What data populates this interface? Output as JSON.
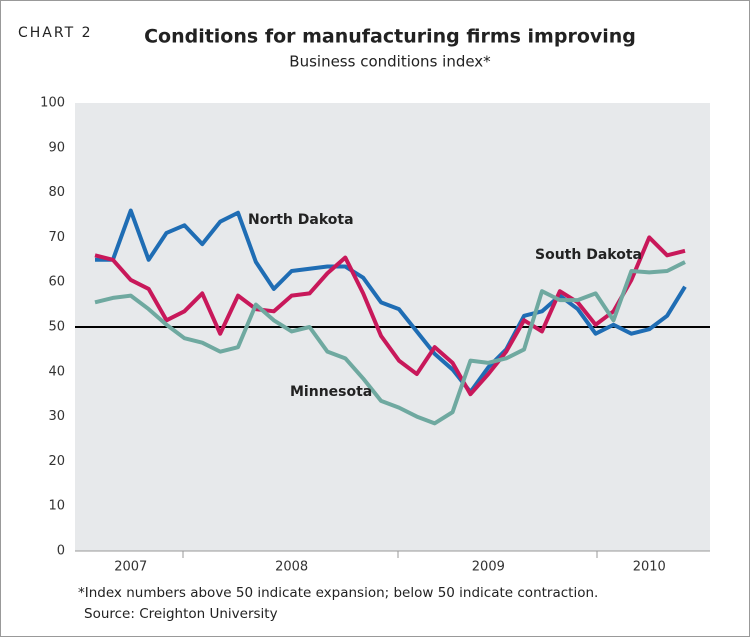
{
  "chart_data": {
    "type": "line",
    "label": "CHART 2",
    "title": "Conditions for manufacturing firms improving",
    "subtitle": "Business conditions index*",
    "footnote": "*Index numbers above 50 indicate expansion; below 50 indicate contraction.",
    "source": "Source: Creighton University",
    "categories": [
      null,
      null,
      "2007",
      null,
      null,
      null,
      null,
      null,
      null,
      null,
      null,
      "2008",
      null,
      null,
      null,
      null,
      null,
      null,
      null,
      null,
      null,
      null,
      "2009",
      null,
      null,
      null,
      null,
      null,
      null,
      null,
      null,
      "2010",
      null,
      null
    ],
    "series": [
      {
        "name": "North Dakota",
        "color": "#1f6db4",
        "values": [
          65,
          65,
          76,
          65,
          71,
          72.7,
          68.5,
          73.5,
          75.5,
          64.5,
          58.5,
          62.5,
          63,
          63.5,
          63.5,
          61,
          55.5,
          54,
          49,
          44,
          40.5,
          35.5,
          41,
          45,
          52.5,
          53.5,
          57,
          54,
          48.5,
          50.5,
          48.5,
          49.5,
          52.5,
          59
        ]
      },
      {
        "name": "South Dakota",
        "color": "#c8185a",
        "values": [
          66,
          65,
          60.5,
          58.5,
          51.5,
          53.5,
          57.5,
          48.5,
          57,
          54,
          53.5,
          57,
          57.5,
          62,
          65.5,
          57.5,
          48,
          42.5,
          39.5,
          45.5,
          42,
          35,
          39.5,
          44.5,
          51.5,
          49,
          58,
          55.5,
          50.5,
          53.5,
          60.5,
          70,
          66,
          67
        ]
      },
      {
        "name": "Minnesota",
        "color": "#6fa9a0",
        "values": [
          55.5,
          56.5,
          57,
          54,
          50.5,
          47.5,
          46.5,
          44.5,
          45.5,
          55,
          51.5,
          49,
          50,
          44.5,
          43,
          38.5,
          33.5,
          32,
          30,
          28.5,
          31,
          42.5,
          42,
          43,
          45,
          58,
          56,
          56,
          57.5,
          51.5,
          62.5,
          62.2,
          62.5,
          64.5
        ]
      }
    ],
    "reference_line": 50,
    "ylim": [
      0,
      100
    ],
    "yticks": [
      0,
      10,
      20,
      30,
      40,
      50,
      60,
      70,
      80,
      90,
      100
    ]
  }
}
